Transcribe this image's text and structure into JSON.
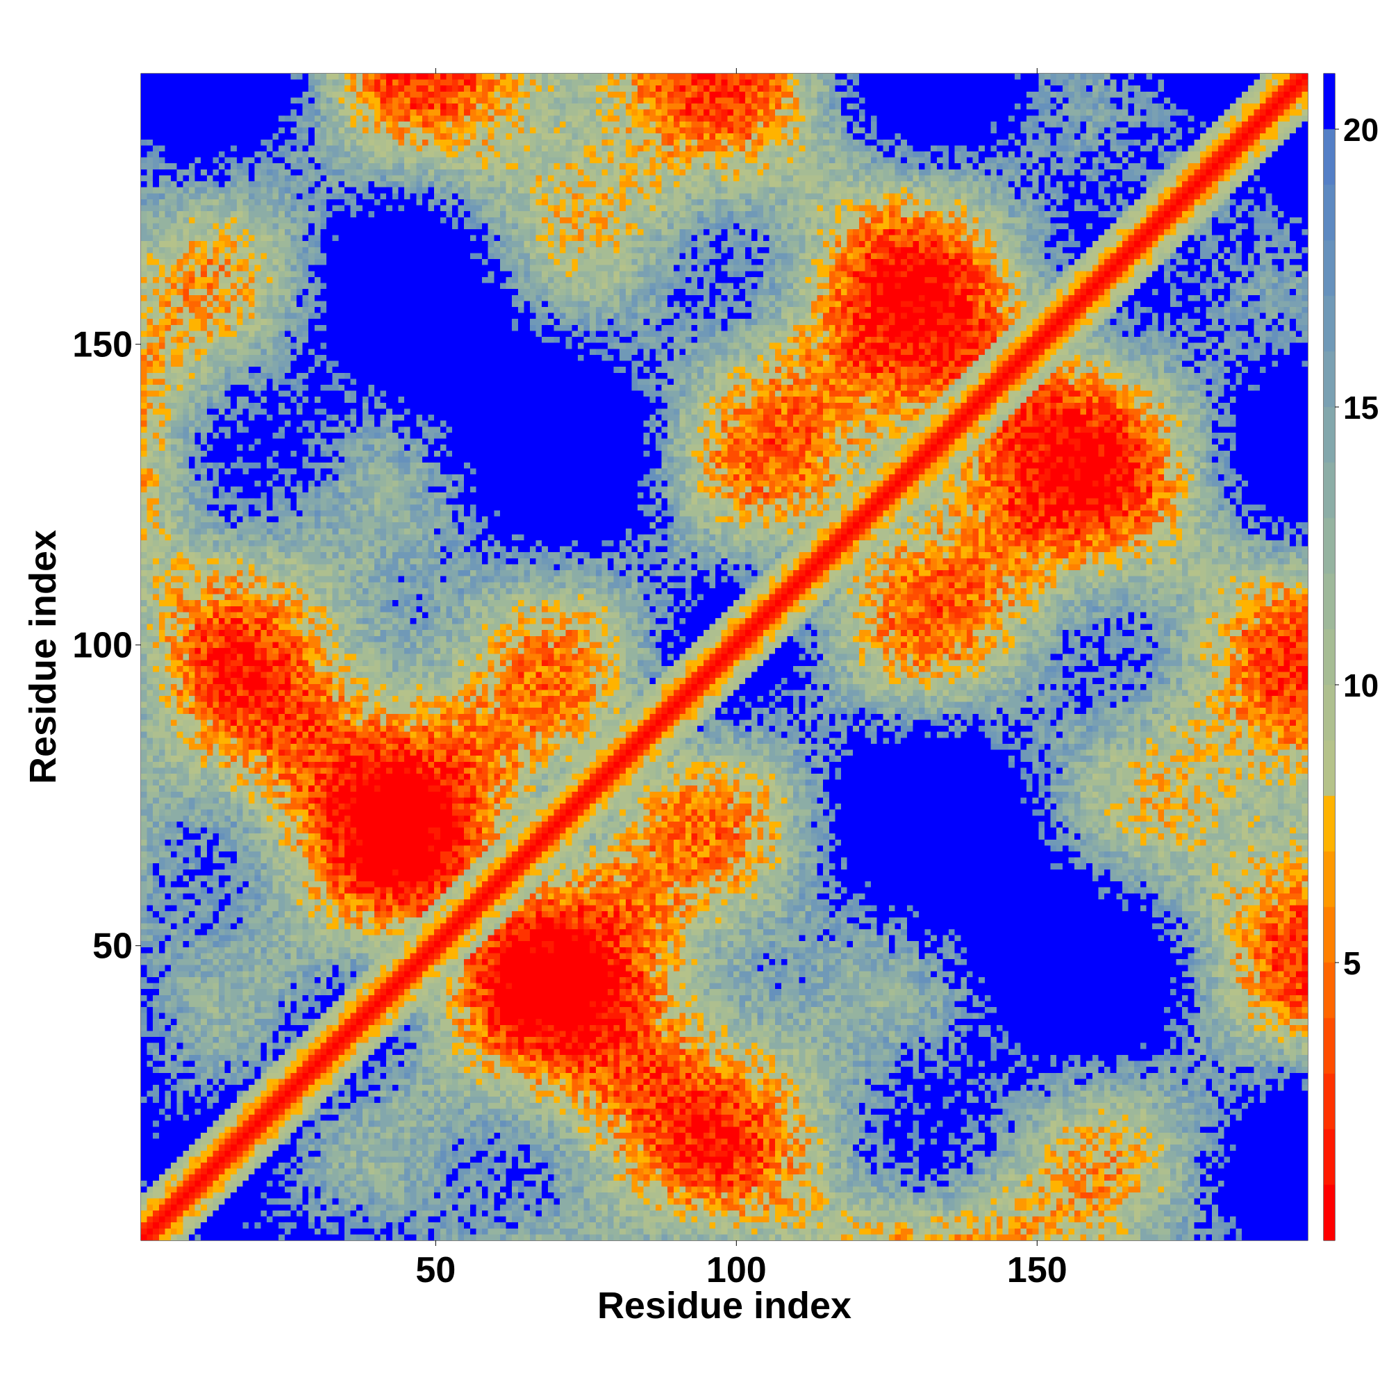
{
  "chart_data": {
    "type": "heatmap",
    "title": "",
    "xlabel": "Residue index",
    "ylabel": "Residue index",
    "xlim": [
      1,
      195
    ],
    "ylim": [
      1,
      195
    ],
    "x_ticks": [
      50,
      100,
      150
    ],
    "y_ticks": [
      50,
      100,
      150
    ],
    "colorbar": {
      "range": [
        0,
        21
      ],
      "ticks": [
        5,
        10,
        15,
        20
      ],
      "levels": [
        {
          "max": 1,
          "color": "#ff0000"
        },
        {
          "max": 2,
          "color": "#ff1a00"
        },
        {
          "max": 3,
          "color": "#ff3300"
        },
        {
          "max": 4,
          "color": "#ff4d00"
        },
        {
          "max": 5,
          "color": "#ff6600"
        },
        {
          "max": 6,
          "color": "#ff8000"
        },
        {
          "max": 7,
          "color": "#ff9900"
        },
        {
          "max": 8,
          "color": "#ffb300"
        },
        {
          "max": 9,
          "color": "#b5c28a"
        },
        {
          "max": 10,
          "color": "#aebf8f"
        },
        {
          "max": 11,
          "color": "#a6bc94"
        },
        {
          "max": 12,
          "color": "#9eb89a"
        },
        {
          "max": 13,
          "color": "#95b3a0"
        },
        {
          "max": 14,
          "color": "#8cada6"
        },
        {
          "max": 15,
          "color": "#83a7ac"
        },
        {
          "max": 16,
          "color": "#7aa0b2"
        },
        {
          "max": 17,
          "color": "#7099b7"
        },
        {
          "max": 18,
          "color": "#6691bc"
        },
        {
          "max": 19,
          "color": "#5d89c1"
        },
        {
          "max": 20,
          "color": "#547fc6"
        },
        {
          "max": 21,
          "color": "#0000ff"
        }
      ]
    },
    "grid": false,
    "description_of_values": "Symmetric pairwise residue distance map; values near diagonal are small (red), far contacts saturate at max (blue)."
  }
}
